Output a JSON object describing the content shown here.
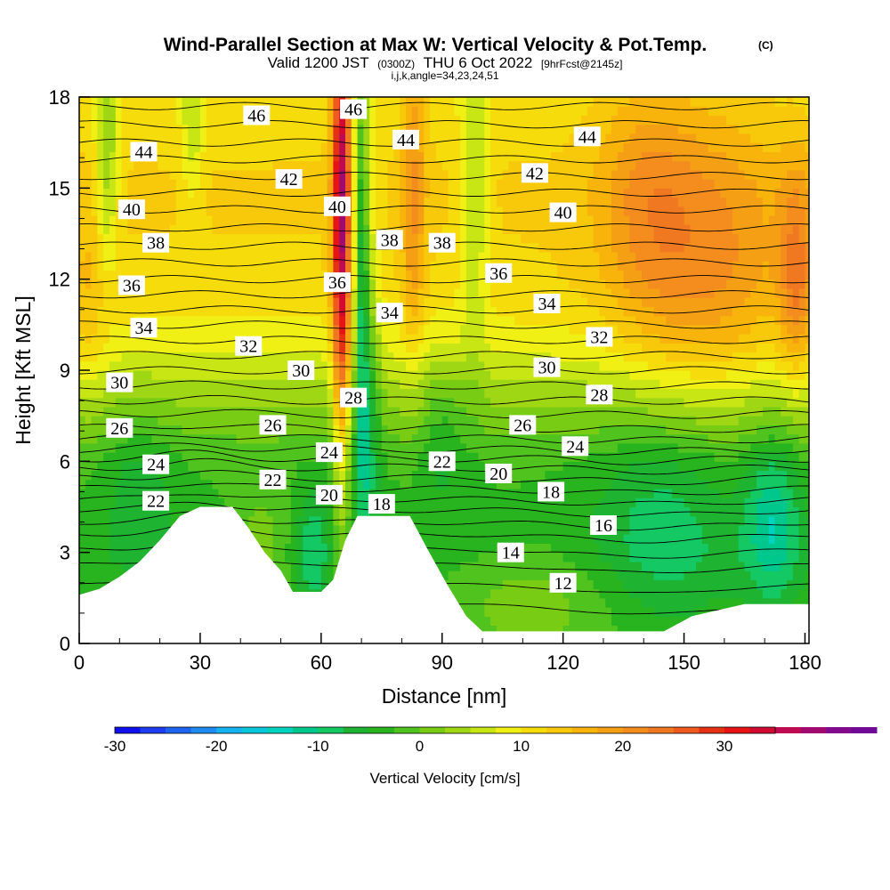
{
  "chart_data": {
    "type": "heatmap",
    "title": "Wind-Parallel Section at Max W: Vertical Velocity & Pot.Temp.",
    "title_mark": "(C)",
    "subtitle": {
      "valid": "Valid 1200 JST",
      "utc": "(0300Z)",
      "date": "THU 6 Oct 2022",
      "fcst": "[9hrFcst@2145z]",
      "indices": "i,j,k,angle=34,23,24,51"
    },
    "xlabel": "Distance [nm]",
    "ylabel": "Height [Kft MSL]",
    "xlim": [
      0,
      181
    ],
    "ylim": [
      0,
      18
    ],
    "x_ticks": [
      0,
      30,
      60,
      90,
      120,
      150,
      180
    ],
    "y_ticks": [
      0,
      3,
      6,
      9,
      12,
      15,
      18
    ],
    "x_tick_labels": [
      "0",
      "30",
      "60",
      "90",
      "120",
      "150",
      "180"
    ],
    "y_tick_labels": [
      "0",
      "3",
      "6",
      "9",
      "12",
      "15",
      "18"
    ],
    "colorbar": {
      "label": "Vertical Velocity [cm/s]",
      "range": [
        -30,
        35
      ],
      "step": 2.5,
      "tick_values": [
        -30,
        -20,
        -10,
        0,
        10,
        20,
        30
      ],
      "tick_labels": [
        "-30",
        "-20",
        "-10",
        "0",
        "10",
        "20",
        "30"
      ],
      "colors": [
        "#1010ee",
        "#1e3cf0",
        "#1e64f0",
        "#1e8cf0",
        "#14b4f0",
        "#0ac8dc",
        "#00d2be",
        "#00c88c",
        "#14c864",
        "#1eb432",
        "#28b41e",
        "#50c31e",
        "#78cd14",
        "#a0d714",
        "#c8e614",
        "#f0f014",
        "#f5dc0a",
        "#f8c80a",
        "#f8b40a",
        "#f5a014",
        "#f58c1e",
        "#f07820",
        "#f05a1e",
        "#e63214",
        "#e61414",
        "#d20a32",
        "#be0a50",
        "#a00a6e",
        "#820a8c",
        "#6e0a96"
      ]
    },
    "terrain_height_kft": [
      {
        "x": 0,
        "h": 1.6
      },
      {
        "x": 5,
        "h": 1.8
      },
      {
        "x": 10,
        "h": 2.2
      },
      {
        "x": 15,
        "h": 2.7
      },
      {
        "x": 20,
        "h": 3.4
      },
      {
        "x": 25,
        "h": 4.2
      },
      {
        "x": 30,
        "h": 4.5
      },
      {
        "x": 38,
        "h": 4.5
      },
      {
        "x": 42,
        "h": 3.8
      },
      {
        "x": 46,
        "h": 3.0
      },
      {
        "x": 50,
        "h": 2.4
      },
      {
        "x": 53,
        "h": 1.7
      },
      {
        "x": 60,
        "h": 1.7
      },
      {
        "x": 63,
        "h": 2.1
      },
      {
        "x": 66,
        "h": 3.4
      },
      {
        "x": 69,
        "h": 4.2
      },
      {
        "x": 82,
        "h": 4.2
      },
      {
        "x": 86,
        "h": 3.2
      },
      {
        "x": 91,
        "h": 2.0
      },
      {
        "x": 96,
        "h": 0.9
      },
      {
        "x": 100,
        "h": 0.4
      },
      {
        "x": 145,
        "h": 0.4
      },
      {
        "x": 152,
        "h": 0.9
      },
      {
        "x": 165,
        "h": 1.3
      },
      {
        "x": 181,
        "h": 1.3
      }
    ],
    "w_field": {
      "background": [
        {
          "z": 0,
          "w": -2
        },
        {
          "z": 3,
          "w": -4
        },
        {
          "z": 6,
          "w": -2
        },
        {
          "z": 8,
          "w": 3
        },
        {
          "z": 10,
          "w": 9
        },
        {
          "z": 12,
          "w": 12
        },
        {
          "z": 15,
          "w": 13
        },
        {
          "z": 18,
          "w": 11
        }
      ],
      "anomalies": [
        {
          "x": 65,
          "z": 14,
          "sx": 1.5,
          "sz": 6,
          "w": 26
        },
        {
          "x": 70,
          "z": 13,
          "sx": 1.2,
          "sz": 5,
          "w": -16
        },
        {
          "x": 72,
          "z": 9,
          "sx": 2,
          "sz": 4,
          "w": -8
        },
        {
          "x": 7,
          "z": 16,
          "sx": 2,
          "sz": 3,
          "w": -9
        },
        {
          "x": 28,
          "z": 17,
          "sx": 2,
          "sz": 2,
          "w": -6
        },
        {
          "x": 83,
          "z": 15,
          "sx": 2,
          "sz": 4,
          "w": 8
        },
        {
          "x": 98,
          "z": 15,
          "sx": 2.5,
          "sz": 4,
          "w": -7
        },
        {
          "x": 155,
          "z": 12.5,
          "sx": 14,
          "sz": 3.5,
          "w": 9
        },
        {
          "x": 140,
          "z": 15,
          "sx": 8,
          "sz": 3,
          "w": 5
        },
        {
          "x": 178,
          "z": 12,
          "sx": 3,
          "sz": 2.5,
          "w": 10
        },
        {
          "x": 3,
          "z": 11,
          "sx": 4,
          "sz": 2.5,
          "w": 4
        },
        {
          "x": 145,
          "z": 4,
          "sx": 12,
          "sz": 2.5,
          "w": -6
        },
        {
          "x": 172,
          "z": 4,
          "sx": 5,
          "sz": 2,
          "w": -9
        },
        {
          "x": 15,
          "z": 5,
          "sx": 6,
          "sz": 2,
          "w": -4
        },
        {
          "x": 58,
          "z": 3,
          "sx": 3,
          "sz": 1.5,
          "w": -6
        },
        {
          "x": 45,
          "z": 3,
          "sx": 5,
          "sz": 1.5,
          "w": 5
        },
        {
          "x": 113,
          "z": 1.5,
          "sx": 15,
          "sz": 1.3,
          "w": 4
        },
        {
          "x": 90,
          "z": 7,
          "sx": 4,
          "sz": 2,
          "w": -4
        }
      ]
    },
    "theta_contours": {
      "levels": [
        12,
        13,
        14,
        15,
        16,
        17,
        18,
        19,
        20,
        21,
        22,
        23,
        24,
        25,
        26,
        27,
        28,
        29,
        30,
        31,
        32,
        33,
        34,
        35,
        36,
        37,
        38,
        39,
        40,
        41,
        42,
        43,
        44,
        45,
        46,
        47,
        48
      ],
      "height_at_level_kft": [
        {
          "level": 12,
          "z": 1.3
        },
        {
          "level": 14,
          "z": 2.6
        },
        {
          "level": 16,
          "z": 3.6
        },
        {
          "level": 18,
          "z": 4.4
        },
        {
          "level": 20,
          "z": 5.1
        },
        {
          "level": 22,
          "z": 5.8
        },
        {
          "level": 24,
          "z": 6.4
        },
        {
          "level": 26,
          "z": 7.1
        },
        {
          "level": 28,
          "z": 8.0
        },
        {
          "level": 30,
          "z": 9.0
        },
        {
          "level": 32,
          "z": 10.0
        },
        {
          "level": 34,
          "z": 11.0
        },
        {
          "level": 36,
          "z": 12.0
        },
        {
          "level": 38,
          "z": 13.1
        },
        {
          "level": 40,
          "z": 14.3
        },
        {
          "level": 42,
          "z": 15.4
        },
        {
          "level": 44,
          "z": 16.5
        },
        {
          "level": 46,
          "z": 17.7
        },
        {
          "level": 48,
          "z": 18.8
        }
      ]
    },
    "contour_labels": [
      {
        "text": "46",
        "x": 44,
        "z": 17.4
      },
      {
        "text": "46",
        "x": 68,
        "z": 17.6
      },
      {
        "text": "44",
        "x": 16,
        "z": 16.2
      },
      {
        "text": "44",
        "x": 81,
        "z": 16.6
      },
      {
        "text": "44",
        "x": 126,
        "z": 16.7
      },
      {
        "text": "42",
        "x": 52,
        "z": 15.3
      },
      {
        "text": "42",
        "x": 113,
        "z": 15.5
      },
      {
        "text": "40",
        "x": 13,
        "z": 14.3
      },
      {
        "text": "40",
        "x": 64,
        "z": 14.4
      },
      {
        "text": "40",
        "x": 120,
        "z": 14.2
      },
      {
        "text": "38",
        "x": 19,
        "z": 13.2
      },
      {
        "text": "38",
        "x": 77,
        "z": 13.3
      },
      {
        "text": "38",
        "x": 90,
        "z": 13.2
      },
      {
        "text": "36",
        "x": 13,
        "z": 11.8
      },
      {
        "text": "36",
        "x": 64,
        "z": 11.9
      },
      {
        "text": "36",
        "x": 104,
        "z": 12.2
      },
      {
        "text": "34",
        "x": 16,
        "z": 10.4
      },
      {
        "text": "34",
        "x": 77,
        "z": 10.9
      },
      {
        "text": "34",
        "x": 116,
        "z": 11.2
      },
      {
        "text": "32",
        "x": 42,
        "z": 9.8
      },
      {
        "text": "32",
        "x": 129,
        "z": 10.1
      },
      {
        "text": "30",
        "x": 10,
        "z": 8.6
      },
      {
        "text": "30",
        "x": 55,
        "z": 9.0
      },
      {
        "text": "30",
        "x": 116,
        "z": 9.1
      },
      {
        "text": "28",
        "x": 68,
        "z": 8.1
      },
      {
        "text": "28",
        "x": 129,
        "z": 8.2
      },
      {
        "text": "26",
        "x": 10,
        "z": 7.1
      },
      {
        "text": "26",
        "x": 48,
        "z": 7.2
      },
      {
        "text": "26",
        "x": 110,
        "z": 7.2
      },
      {
        "text": "24",
        "x": 19,
        "z": 5.9
      },
      {
        "text": "24",
        "x": 62,
        "z": 6.3
      },
      {
        "text": "24",
        "x": 123,
        "z": 6.5
      },
      {
        "text": "22",
        "x": 19,
        "z": 4.7
      },
      {
        "text": "22",
        "x": 48,
        "z": 5.4
      },
      {
        "text": "22",
        "x": 90,
        "z": 6.0
      },
      {
        "text": "20",
        "x": 62,
        "z": 4.9
      },
      {
        "text": "20",
        "x": 104,
        "z": 5.6
      },
      {
        "text": "18",
        "x": 75,
        "z": 4.6
      },
      {
        "text": "18",
        "x": 117,
        "z": 5.0
      },
      {
        "text": "16",
        "x": 130,
        "z": 3.9
      },
      {
        "text": "14",
        "x": 107,
        "z": 3.0
      },
      {
        "text": "12",
        "x": 120,
        "z": 2.0
      }
    ]
  }
}
